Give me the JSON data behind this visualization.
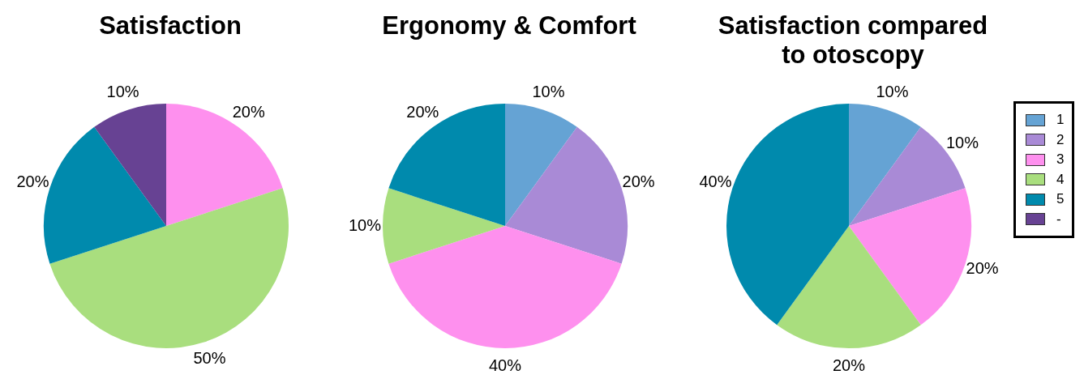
{
  "chart_data": [
    {
      "type": "pie",
      "title": "Satisfaction",
      "values": [
        0,
        0,
        20,
        50,
        20,
        10
      ],
      "colors": [
        "#65a3d4",
        "#a98ad6",
        "#fe90ee",
        "#a9de7e",
        "#008aad",
        "#674293"
      ],
      "value_labels": [
        null,
        null,
        "20%",
        "50%",
        "20%",
        "10%"
      ]
    },
    {
      "type": "pie",
      "title": "Ergonomy & Comfort",
      "values": [
        10,
        20,
        40,
        10,
        20,
        0
      ],
      "colors": [
        "#65a3d4",
        "#a98ad6",
        "#fe90ee",
        "#a9de7e",
        "#008aad",
        "#674293"
      ],
      "value_labels": [
        "10%",
        "20%",
        "40%",
        "10%",
        "20%",
        null
      ]
    },
    {
      "type": "pie",
      "title": "Satisfaction compared to otoscopy",
      "categories": [
        "1",
        "2",
        "3",
        "4",
        "5",
        "-"
      ],
      "values": [
        10,
        10,
        20,
        20,
        40,
        0
      ],
      "colors": [
        "#65a3d4",
        "#a98ad6",
        "#fe90ee",
        "#a9de7e",
        "#008aad",
        "#674293"
      ],
      "value_labels": [
        "10%",
        "10%",
        "20%",
        "20%",
        "40%",
        null
      ],
      "legend": "right"
    }
  ]
}
